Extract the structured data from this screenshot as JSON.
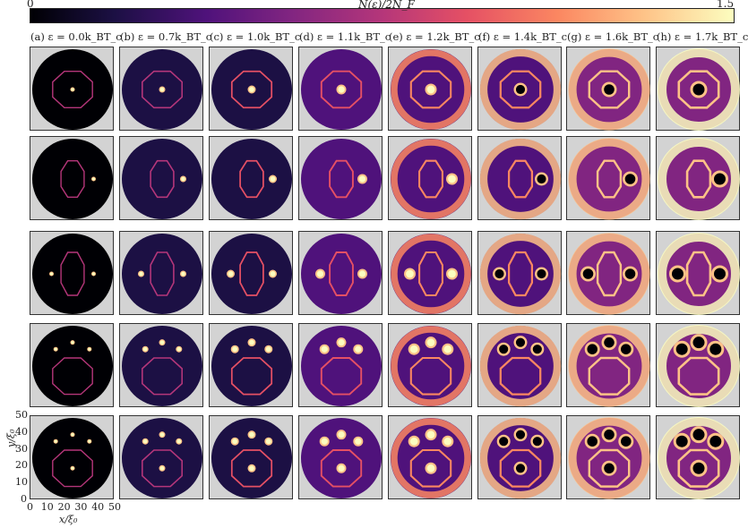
{
  "colorbar": {
    "label": "N(ε)/2N_F",
    "min": "0",
    "max": "1.5",
    "colors": [
      "#000004",
      "#1c1044",
      "#4f127b",
      "#812581",
      "#b5367a",
      "#e55064",
      "#fb8761",
      "#fec287",
      "#fcfdbf"
    ]
  },
  "columns": [
    {
      "title": "(a) ε = 0.0k_BT_c"
    },
    {
      "title": "(b) ε = 0.7k_BT_c"
    },
    {
      "title": "(c) ε = 1.0k_BT_c"
    },
    {
      "title": "(d) ε = 1.1k_BT_c"
    },
    {
      "title": "(e) ε = 1.2k_BT_c"
    },
    {
      "title": "(f) ε = 1.4k_BT_c"
    },
    {
      "title": "(g) ε = 1.6k_BT_c"
    },
    {
      "title": "(h) ε = 1.7k_BT_c"
    }
  ],
  "axes": {
    "xlabel": "x/ξ₀",
    "ylabel": "y/ξ₀",
    "xticks": [
      "0",
      "10",
      "20",
      "30",
      "40",
      "50"
    ],
    "yticks": [
      "0",
      "10",
      "20",
      "30",
      "40",
      "50"
    ]
  }
}
